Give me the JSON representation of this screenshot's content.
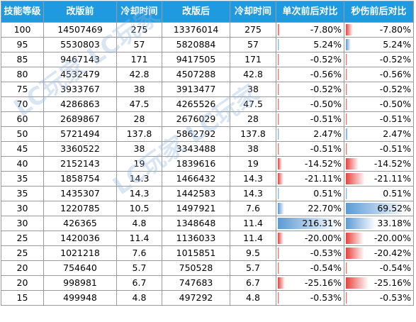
{
  "headers": [
    "技能等级",
    "改版前",
    "冷却时间",
    "改版后",
    "冷却时间",
    "单次前后对比",
    "秒伤前后对比"
  ],
  "rows": [
    {
      "level": "100",
      "before": "14507469",
      "cd_before": "275",
      "after": "13376014",
      "cd_after": "275",
      "single": "-7.80%",
      "single_v": -7.8,
      "dps": "-7.80%",
      "dps_v": -7.8
    },
    {
      "level": "95",
      "before": "5530803",
      "cd_before": "57",
      "after": "5820884",
      "cd_after": "57",
      "single": "5.24%",
      "single_v": 5.24,
      "dps": "5.24%",
      "dps_v": 5.24
    },
    {
      "level": "85",
      "before": "9467143",
      "cd_before": "171",
      "after": "9417505",
      "cd_after": "171",
      "single": "-0.52%",
      "single_v": -0.52,
      "dps": "-0.52%",
      "dps_v": -0.52
    },
    {
      "level": "80",
      "before": "4532479",
      "cd_before": "42.8",
      "after": "4507288",
      "cd_after": "42.8",
      "single": "-0.56%",
      "single_v": -0.56,
      "dps": "-0.56%",
      "dps_v": -0.56
    },
    {
      "level": "75",
      "before": "3933767",
      "cd_before": "38",
      "after": "3913477",
      "cd_after": "38",
      "single": "-0.52%",
      "single_v": -0.52,
      "dps": "-0.52%",
      "dps_v": -0.52
    },
    {
      "level": "70",
      "before": "4286863",
      "cd_before": "47.5",
      "after": "4265526",
      "cd_after": "47.5",
      "single": "-0.50%",
      "single_v": -0.5,
      "dps": "-0.50%",
      "dps_v": -0.5
    },
    {
      "level": "60",
      "before": "2689867",
      "cd_before": "28",
      "after": "2676029",
      "cd_after": "28",
      "single": "-0.51%",
      "single_v": -0.51,
      "dps": "-0.51%",
      "dps_v": -0.51
    },
    {
      "level": "50",
      "before": "5721494",
      "cd_before": "137.8",
      "after": "5862792",
      "cd_after": "137.8",
      "single": "2.47%",
      "single_v": 2.47,
      "dps": "2.47%",
      "dps_v": 2.47
    },
    {
      "level": "45",
      "before": "3360522",
      "cd_before": "38",
      "after": "3343488",
      "cd_after": "38",
      "single": "-0.51%",
      "single_v": -0.51,
      "dps": "-0.51%",
      "dps_v": -0.51
    },
    {
      "level": "40",
      "before": "2152143",
      "cd_before": "19",
      "after": "1839616",
      "cd_after": "19",
      "single": "-14.52%",
      "single_v": -14.52,
      "dps": "-14.52%",
      "dps_v": -14.52
    },
    {
      "level": "35",
      "before": "1858754",
      "cd_before": "14.3",
      "after": "1466432",
      "cd_after": "14.3",
      "single": "-21.11%",
      "single_v": -21.11,
      "dps": "-21.11%",
      "dps_v": -21.11
    },
    {
      "level": "35",
      "before": "1435307",
      "cd_before": "14.3",
      "after": "1442583",
      "cd_after": "14.3",
      "single": "0.51%",
      "single_v": 0.51,
      "dps": "0.51%",
      "dps_v": 0.51
    },
    {
      "level": "30",
      "before": "1220785",
      "cd_before": "10.5",
      "after": "1497921",
      "cd_after": "7.6",
      "single": "22.70%",
      "single_v": 22.7,
      "dps": "69.52%",
      "dps_v": 69.52
    },
    {
      "level": "30",
      "before": "426365",
      "cd_before": "4.8",
      "after": "1348648",
      "cd_after": "11.4",
      "single": "216.31%",
      "single_v": 216.31,
      "dps": "33.18%",
      "dps_v": 33.18
    },
    {
      "level": "25",
      "before": "1420036",
      "cd_before": "11.4",
      "after": "1136033",
      "cd_after": "11.4",
      "single": "-20.00%",
      "single_v": -20.0,
      "dps": "-20.00%",
      "dps_v": -20.0
    },
    {
      "level": "25",
      "before": "1021218",
      "cd_before": "7.6",
      "after": "1015851",
      "cd_after": "9.5",
      "single": "-0.53%",
      "single_v": -0.53,
      "dps": "-20.42%",
      "dps_v": -20.42
    },
    {
      "level": "20",
      "before": "754640",
      "cd_before": "5.7",
      "after": "750528",
      "cd_after": "5.7",
      "single": "-0.54%",
      "single_v": -0.54,
      "dps": "-0.54%",
      "dps_v": -0.54
    },
    {
      "level": "20",
      "before": "998981",
      "cd_before": "6.7",
      "after": "747683",
      "cd_after": "6.7",
      "single": "-25.16%",
      "single_v": -25.16,
      "dps": "-25.16%",
      "dps_v": -25.16
    },
    {
      "level": "15",
      "before": "499948",
      "cd_before": "4.8",
      "after": "497292",
      "cd_after": "4.8",
      "single": "-0.53%",
      "single_v": -0.53,
      "dps": "-0.53%",
      "dps_v": -0.53
    }
  ],
  "colors": {
    "header_bg": "#1f9ae0",
    "neg_bar": "#e8413c",
    "pos_bar": "#5b9bd5"
  }
}
